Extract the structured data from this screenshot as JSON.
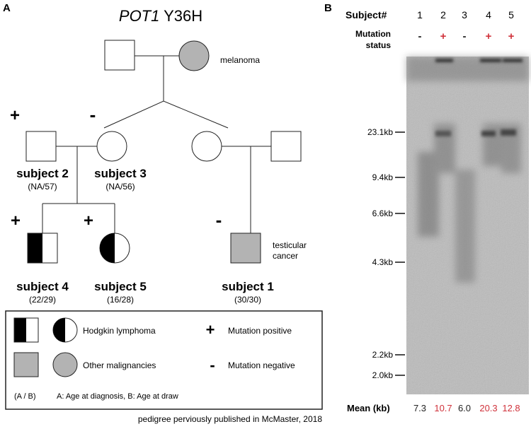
{
  "panel_a": {
    "label": "A",
    "title_gene": "POT1",
    "title_variant": " Y36H",
    "melanoma_label": "melanoma",
    "testicular_label_1": "testicular",
    "testicular_label_2": "cancer",
    "signs": {
      "subject2": "+",
      "subject3": "-",
      "subject4": "+",
      "subject5": "+",
      "subject1": "-"
    },
    "subjects": {
      "s2": {
        "name": "subject 2",
        "ages": "(NA/57)"
      },
      "s3": {
        "name": "subject 3",
        "ages": "(NA/56)"
      },
      "s4": {
        "name": "subject 4",
        "ages": "(22/29)"
      },
      "s5": {
        "name": "subject 5",
        "ages": "(16/28)"
      },
      "s1": {
        "name": "subject 1",
        "ages": "(30/30)"
      }
    },
    "legend": {
      "hodgkin": "Hodgkin lymphoma",
      "other": "Other malignancies",
      "mut_pos_sym": "+",
      "mut_pos": "Mutation positive",
      "mut_neg_sym": "-",
      "mut_neg": "Mutation negative",
      "ab_key": "(A / B)",
      "ab_desc": "A: Age at diagnosis, B: Age at draw"
    },
    "footnote": "pedigree perviously published in McMaster, 2018"
  },
  "panel_b": {
    "label": "B",
    "subject_header": "Subject#",
    "mutation_header_1": "Mutation",
    "mutation_header_2": "status",
    "lanes": [
      "1",
      "2",
      "3",
      "4",
      "5"
    ],
    "status": [
      "-",
      "+",
      "-",
      "+",
      "+"
    ],
    "markers": [
      "23.1kb",
      "9.4kb",
      "6.6kb",
      "4.3kb",
      "2.2kb",
      "2.0kb"
    ],
    "mean_label": "Mean (kb)",
    "means": [
      "7.3",
      "10.7",
      "6.0",
      "20.3",
      "12.8"
    ],
    "colors": {
      "positive": "#d0323b",
      "negative": "#222222",
      "affected_fill": "#b3b3b3"
    }
  }
}
